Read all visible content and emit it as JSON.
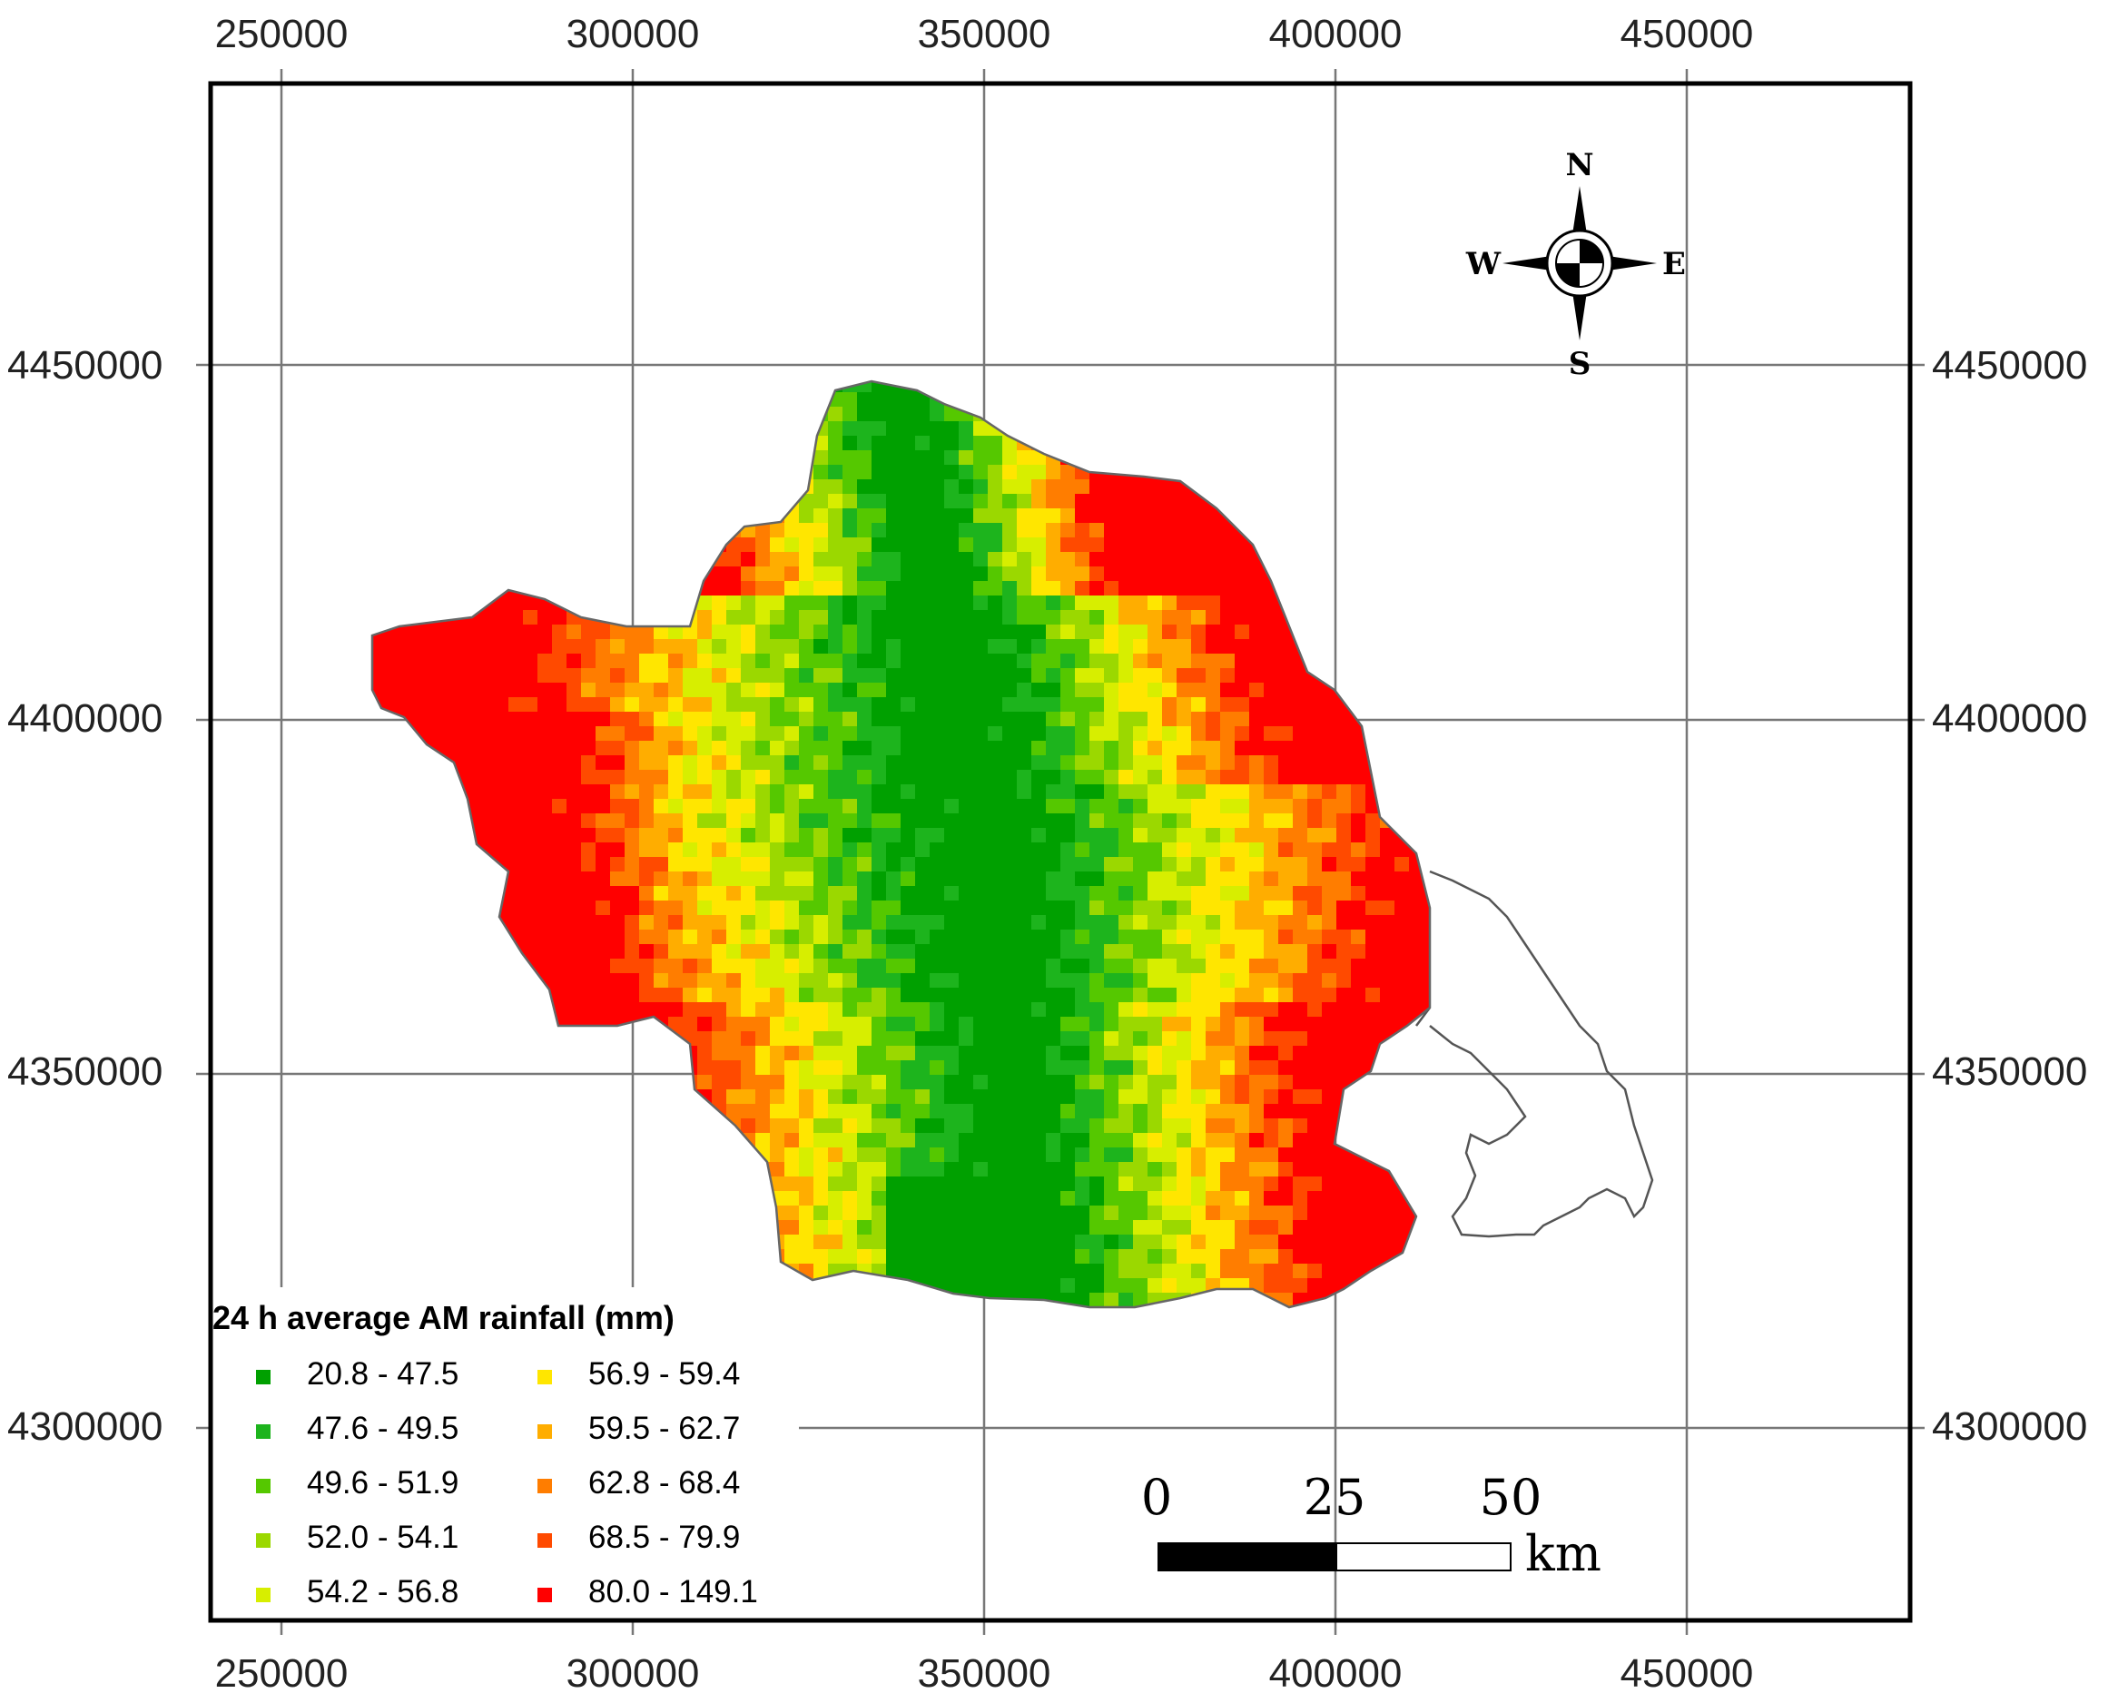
{
  "map": {
    "x_ticks": [
      "250000",
      "300000",
      "350000",
      "400000",
      "450000"
    ],
    "y_ticks": [
      "4450000",
      "4400000",
      "4350000",
      "4300000"
    ]
  },
  "legend": {
    "title": "24 h average AM rainfall (mm)",
    "classes": [
      {
        "label": "20.8 - 47.5",
        "color": "#00a000"
      },
      {
        "label": "47.6 - 49.5",
        "color": "#1db41d"
      },
      {
        "label": "49.6 - 51.9",
        "color": "#55c800"
      },
      {
        "label": "52.0 - 54.1",
        "color": "#9bd800"
      },
      {
        "label": "54.2 - 56.8",
        "color": "#d7ee00"
      },
      {
        "label": "56.9 - 59.4",
        "color": "#ffe600"
      },
      {
        "label": "59.5 - 62.7",
        "color": "#ffad00"
      },
      {
        "label": "62.8 - 68.4",
        "color": "#ff7d00"
      },
      {
        "label": "68.5 - 79.9",
        "color": "#ff4a00"
      },
      {
        "label": "80.0 - 149.1",
        "color": "#ff0000"
      }
    ]
  },
  "scale_bar": {
    "labels": [
      "0",
      "25",
      "50"
    ],
    "unit": "km"
  },
  "compass": {
    "n": "N",
    "s": "S",
    "e": "E",
    "w": "W"
  }
}
